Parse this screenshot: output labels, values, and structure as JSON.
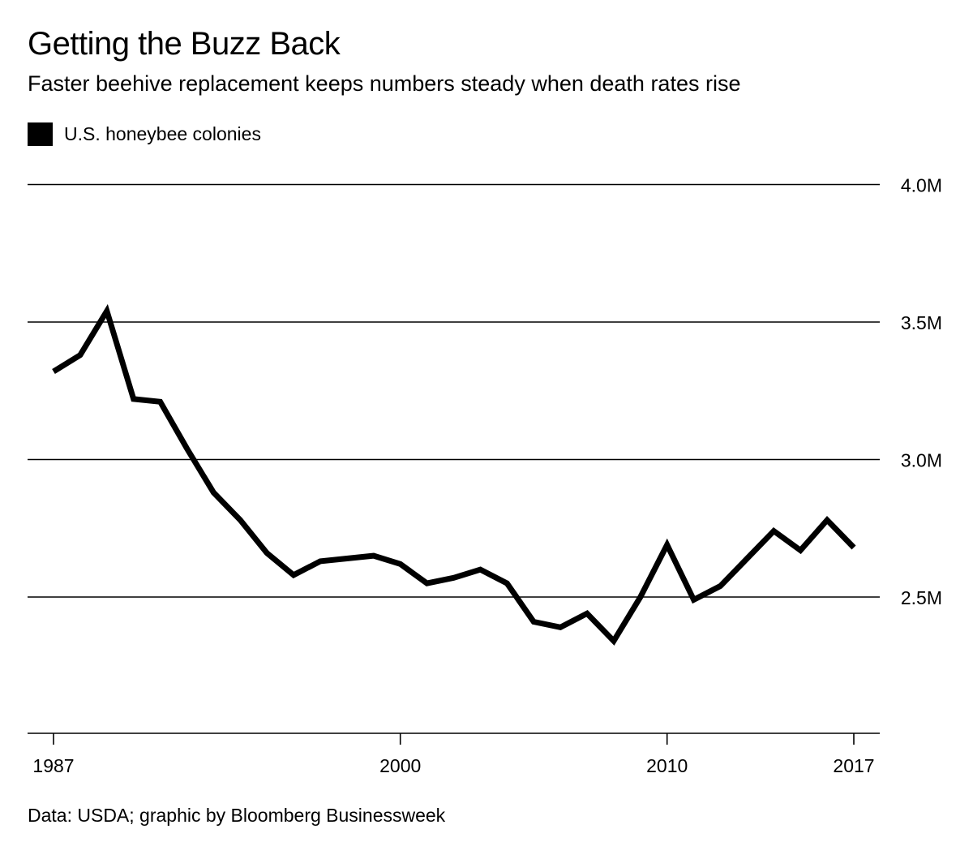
{
  "chart_data": {
    "type": "line",
    "title": "Getting the Buzz Back",
    "subtitle": "Faster beehive replacement keeps numbers steady when death rates rise",
    "source": "Data: USDA; graphic by Bloomberg Businessweek",
    "series": [
      {
        "name": "U.S. honeybee colonies",
        "color": "#000000",
        "x": [
          1987,
          1988,
          1989,
          1990,
          1991,
          1992,
          1993,
          1994,
          1995,
          1996,
          1997,
          1998,
          1999,
          2000,
          2001,
          2002,
          2003,
          2004,
          2005,
          2006,
          2007,
          2008,
          2009,
          2010,
          2011,
          2012,
          2013,
          2014,
          2015,
          2016,
          2017
        ],
        "values": [
          3.32,
          3.38,
          3.54,
          3.22,
          3.21,
          3.04,
          2.88,
          2.78,
          2.66,
          2.58,
          2.63,
          2.64,
          2.65,
          2.62,
          2.55,
          2.57,
          2.6,
          2.55,
          2.41,
          2.39,
          2.44,
          2.34,
          2.5,
          2.69,
          2.49,
          2.54,
          2.64,
          2.74,
          2.67,
          2.78,
          2.68
        ]
      }
    ],
    "ylim": [
      2.0,
      4.0
    ],
    "y_ticks": [
      {
        "value": 2.5,
        "label": "2.5M"
      },
      {
        "value": 3.0,
        "label": "3.0M"
      },
      {
        "value": 3.5,
        "label": "3.5M"
      },
      {
        "value": 4.0,
        "label": "4.0M"
      }
    ],
    "xlim": [
      1987,
      2017
    ],
    "x_ticks": [
      {
        "value": 1987,
        "label": "1987"
      },
      {
        "value": 2000,
        "label": "2000"
      },
      {
        "value": 2010,
        "label": "2010"
      },
      {
        "value": 2017,
        "label": "2017"
      }
    ],
    "grid": true,
    "legend_position": "top-left",
    "y_axis_side": "right"
  }
}
